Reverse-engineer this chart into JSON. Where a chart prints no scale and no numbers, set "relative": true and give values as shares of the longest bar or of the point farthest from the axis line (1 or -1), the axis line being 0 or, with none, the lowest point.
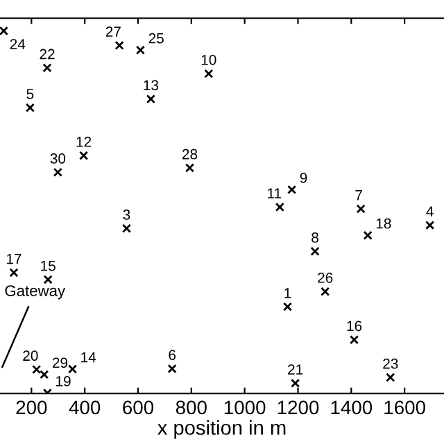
{
  "chart_data": {
    "type": "scatter",
    "relative": true,
    "xlabel": "x position in m",
    "xlim": [
      82,
      1748
    ],
    "xticks": [
      200,
      400,
      600,
      800,
      1000,
      1200,
      1400,
      1600
    ],
    "marker": "cross",
    "grid": false,
    "legend": false,
    "x": [
      1161,
      557,
      1695,
      195,
      728,
      1436,
      1264,
      1177,
      865,
      1132,
      396,
      648,
      354,
      262,
      1411,
      134,
      1462,
      260,
      219,
      1190,
      259,
      1547,
      96,
      609,
      1302,
      530,
      794,
      248,
      299
    ],
    "series": [
      {
        "color": "#000000",
        "values": [
          0.239,
          0.455,
          0.464,
          0.788,
          0.068,
          0.509,
          0.392,
          0.562,
          0.882,
          0.514,
          0.656,
          0.812,
          0.067,
          0.314,
          0.148,
          0.333,
          0.436,
          0.001,
          0.066,
          0.028,
          0.898,
          0.044,
          1,
          0.947,
          0.281,
          0.96,
          0.622,
          0.052,
          0.61
        ]
      }
    ],
    "annotations": [
      {
        "text": "1",
        "x": 1161,
        "y": 0.239
      },
      {
        "text": "3",
        "x": 557,
        "y": 0.455
      },
      {
        "text": "4",
        "x": 1695,
        "y": 0.464
      },
      {
        "text": "5",
        "x": 195,
        "y": 0.788
      },
      {
        "text": "6",
        "x": 728,
        "y": 0.068
      },
      {
        "text": "7",
        "x": 1436,
        "y": 0.509
      },
      {
        "text": "8",
        "x": 1264,
        "y": 0.392
      },
      {
        "text": "9",
        "x": 1177,
        "y": 0.562
      },
      {
        "text": "10",
        "x": 865,
        "y": 0.882
      },
      {
        "text": "11",
        "x": 1132,
        "y": 0.514
      },
      {
        "text": "12",
        "x": 396,
        "y": 0.656
      },
      {
        "text": "13",
        "x": 648,
        "y": 0.812
      },
      {
        "text": "14",
        "x": 354,
        "y": 0.067
      },
      {
        "text": "15",
        "x": 262,
        "y": 0.314
      },
      {
        "text": "16",
        "x": 1411,
        "y": 0.148
      },
      {
        "text": "17",
        "x": 134,
        "y": 0.333
      },
      {
        "text": "18",
        "x": 1462,
        "y": 0.436
      },
      {
        "text": "19",
        "x": 260,
        "y": 0.001
      },
      {
        "text": "20",
        "x": 219,
        "y": 0.066
      },
      {
        "text": "21",
        "x": 1190,
        "y": 0.028
      },
      {
        "text": "22",
        "x": 259,
        "y": 0.898
      },
      {
        "text": "23",
        "x": 1547,
        "y": 0.044
      },
      {
        "text": "24",
        "x": 96,
        "y": 1
      },
      {
        "text": "25",
        "x": 609,
        "y": 0.947
      },
      {
        "text": "26",
        "x": 1302,
        "y": 0.281
      },
      {
        "text": "27",
        "x": 530,
        "y": 0.96
      },
      {
        "text": "28",
        "x": 794,
        "y": 0.622
      },
      {
        "text": "29",
        "x": 248,
        "y": 0.052
      },
      {
        "text": "30",
        "x": 299,
        "y": 0.61
      },
      "Gateway"
    ]
  }
}
